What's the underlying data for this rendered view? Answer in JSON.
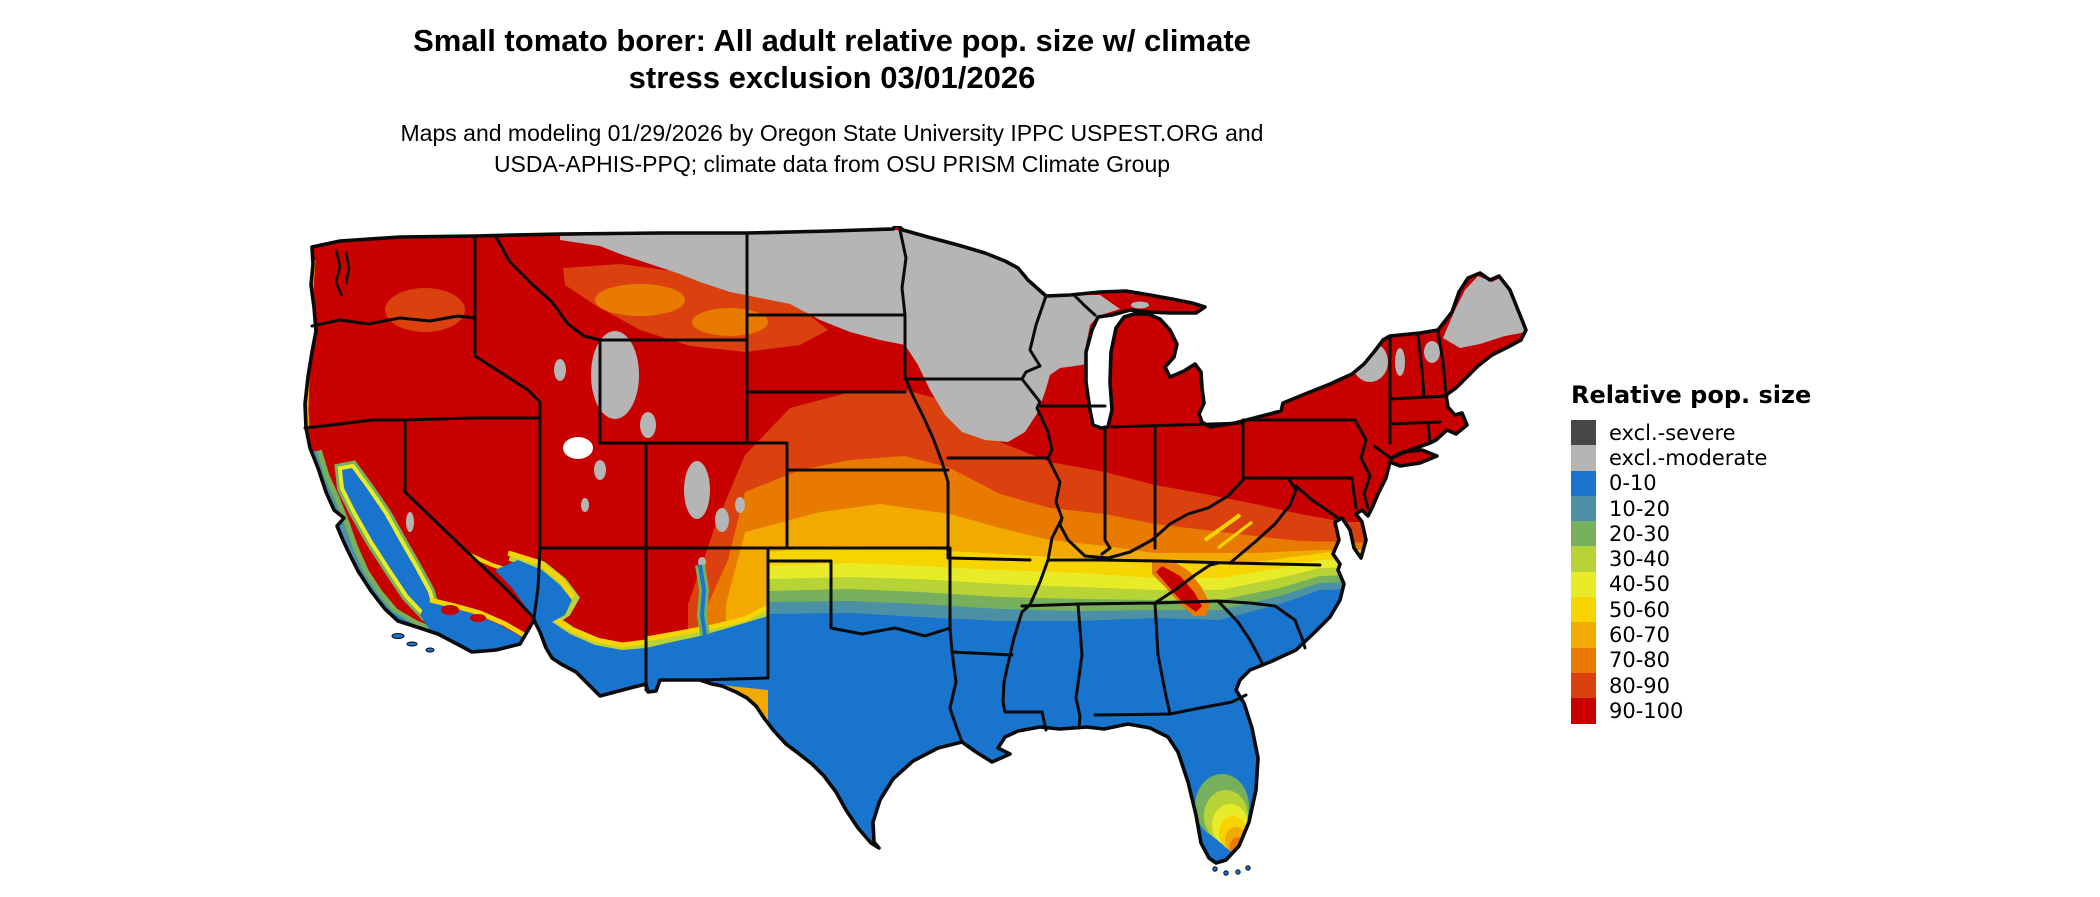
{
  "header": {
    "title_line1": "Small tomato borer: All adult relative pop. size w/ climate",
    "title_line2": "stress exclusion 03/01/2026",
    "subtitle_line1": "Maps and modeling 01/29/2026 by Oregon State University IPPC USPEST.ORG and",
    "subtitle_line2": "USDA-APHIS-PPQ; climate data from OSU PRISM Climate Group"
  },
  "legend": {
    "title": "Relative pop. size",
    "items": [
      {
        "key": "excl_severe",
        "label": "excl.-severe",
        "color": "#474747"
      },
      {
        "key": "excl_moderate",
        "label": "excl.-moderate",
        "color": "#b5b5b5"
      },
      {
        "key": "b0_10",
        "label": "0-10",
        "color": "#1874cd"
      },
      {
        "key": "b10_20",
        "label": "10-20",
        "color": "#4b90a5"
      },
      {
        "key": "b20_30",
        "label": "20-30",
        "color": "#76b05c"
      },
      {
        "key": "b30_40",
        "label": "30-40",
        "color": "#b8d335"
      },
      {
        "key": "b40_50",
        "label": "40-50",
        "color": "#e8ec28"
      },
      {
        "key": "b50_60",
        "label": "50-60",
        "color": "#f7d400"
      },
      {
        "key": "b60_70",
        "label": "60-70",
        "color": "#f2a900"
      },
      {
        "key": "b70_80",
        "label": "70-80",
        "color": "#e87a00"
      },
      {
        "key": "b80_90",
        "label": "80-90",
        "color": "#da410e"
      },
      {
        "key": "b90_100",
        "label": "90-100",
        "color": "#c80000"
      }
    ]
  },
  "map": {
    "region": "Continental United States",
    "type": "raster choropleth of relative pest population size by climate suitability",
    "water_color": "#ffffff",
    "border_color": "#0a0a0a"
  }
}
